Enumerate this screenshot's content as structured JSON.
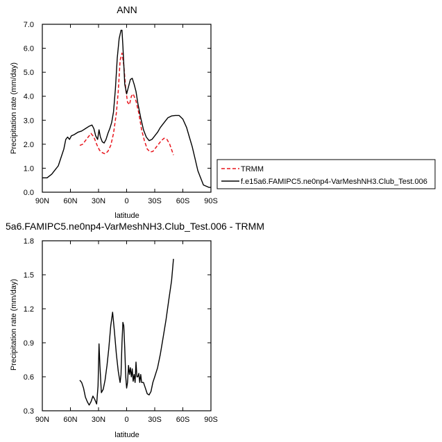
{
  "chart_data": [
    {
      "type": "line",
      "title": "ANN",
      "xlabel": "latitude",
      "ylabel": "Precipitation rate (mm/day)",
      "xlim": [
        90,
        -90
      ],
      "ylim": [
        0,
        7
      ],
      "x_ticks": [
        90,
        60,
        30,
        0,
        -30,
        -60,
        -90
      ],
      "x_tick_labels": [
        "90N",
        "60N",
        "30N",
        "0",
        "30S",
        "60S",
        "90S"
      ],
      "y_ticks": [
        0,
        1,
        2,
        3,
        4,
        5,
        6,
        7
      ],
      "y_tick_labels": [
        "0.0",
        "1.0",
        "2.0",
        "3.0",
        "4.0",
        "5.0",
        "6.0",
        "7.0"
      ],
      "legend": {
        "placement": "right, outside plot",
        "entries": [
          "TRMM",
          "f.e15a6.FAMIPC5.ne0np4-VarMeshNH3.Club_Test.006"
        ]
      },
      "series": [
        {
          "name": "TRMM",
          "style": "dashed",
          "color": "#e8141c",
          "x": [
            50,
            47,
            44,
            41,
            38,
            35,
            32,
            29,
            26,
            23,
            20,
            17,
            14,
            11,
            9,
            7,
            5,
            3,
            1,
            -1,
            -3,
            -5,
            -7,
            -10,
            -13,
            -16,
            -19,
            -22,
            -25,
            -28,
            -31,
            -34,
            -37,
            -40,
            -43,
            -46,
            -50
          ],
          "y": [
            1.95,
            2.0,
            2.15,
            2.3,
            2.45,
            2.3,
            2.0,
            1.75,
            1.65,
            1.6,
            1.7,
            1.95,
            2.45,
            3.3,
            4.2,
            5.5,
            5.8,
            5.3,
            4.3,
            3.75,
            3.65,
            4.0,
            4.1,
            3.8,
            3.3,
            2.6,
            2.15,
            1.8,
            1.68,
            1.7,
            1.85,
            2.0,
            2.15,
            2.25,
            2.2,
            2.0,
            1.55
          ]
        },
        {
          "name": "f.e15a6.FAMIPC5.ne0np4-VarMeshNH3.Club_Test.006",
          "style": "solid",
          "color": "#000000",
          "x": [
            90,
            85,
            80,
            76,
            73,
            70,
            67,
            65,
            63,
            61,
            59,
            56,
            52,
            48,
            44,
            40,
            37,
            35,
            33,
            31,
            29.5,
            28,
            26,
            24,
            22,
            20,
            18,
            16,
            14,
            12,
            10,
            8,
            6,
            5,
            4,
            2,
            0,
            -2,
            -4,
            -6,
            -8,
            -10,
            -12,
            -15,
            -18,
            -21,
            -24,
            -27,
            -30,
            -33,
            -36,
            -40,
            -44,
            -48,
            -52,
            -56,
            -60,
            -64,
            -67,
            -70,
            -73,
            -76,
            -79,
            -82,
            -85,
            -88,
            -90
          ],
          "y": [
            0.6,
            0.6,
            0.75,
            0.95,
            1.1,
            1.45,
            1.8,
            2.2,
            2.3,
            2.2,
            2.35,
            2.4,
            2.5,
            2.55,
            2.65,
            2.75,
            2.8,
            2.65,
            2.35,
            2.2,
            2.6,
            2.3,
            2.1,
            2.05,
            2.2,
            2.45,
            2.65,
            2.9,
            3.35,
            4.3,
            5.6,
            6.4,
            6.75,
            6.75,
            6.1,
            4.5,
            4.1,
            4.4,
            4.7,
            4.75,
            4.5,
            4.2,
            3.7,
            3.1,
            2.6,
            2.3,
            2.15,
            2.2,
            2.35,
            2.5,
            2.7,
            2.9,
            3.1,
            3.18,
            3.2,
            3.2,
            3.05,
            2.7,
            2.3,
            1.9,
            1.4,
            0.9,
            0.6,
            0.3,
            0.25,
            0.2,
            0.2
          ]
        }
      ]
    },
    {
      "type": "line",
      "title": "5a6.FAMIPC5.ne0np4-VarMeshNH3.Club_Test.006 - TRMM",
      "xlabel": "latitude",
      "ylabel": "Precipitation rate (mm/day)",
      "xlim": [
        90,
        -90
      ],
      "ylim": [
        0.3,
        1.8
      ],
      "x_ticks": [
        90,
        60,
        30,
        0,
        -30,
        -60,
        -90
      ],
      "x_tick_labels": [
        "90N",
        "60N",
        "30N",
        "0",
        "30S",
        "60S",
        "90S"
      ],
      "y_ticks": [
        0.3,
        0.6,
        0.9,
        1.2,
        1.5,
        1.8
      ],
      "y_tick_labels": [
        "0.3",
        "0.6",
        "0.9",
        "1.2",
        "1.5",
        "1.8"
      ],
      "series": [
        {
          "style": "solid",
          "color": "#000000",
          "x": [
            50,
            48,
            46,
            44,
            42,
            40,
            38,
            36,
            34,
            32,
            30.5,
            29.5,
            28.5,
            27,
            25,
            23,
            21,
            19,
            17,
            15,
            13,
            11,
            9,
            8,
            7,
            6,
            5,
            4,
            3,
            2,
            1,
            0,
            -1,
            -2,
            -3,
            -4,
            -5,
            -6,
            -7,
            -8,
            -9,
            -10,
            -11,
            -12,
            -13,
            -14,
            -15,
            -16,
            -18,
            -20,
            -22,
            -24,
            -26,
            -28,
            -30,
            -33,
            -36,
            -39,
            -42,
            -45,
            -48,
            -50
          ],
          "y": [
            0.57,
            0.55,
            0.5,
            0.42,
            0.38,
            0.35,
            0.38,
            0.43,
            0.4,
            0.36,
            0.52,
            0.89,
            0.7,
            0.46,
            0.49,
            0.57,
            0.7,
            0.85,
            1.05,
            1.17,
            1.0,
            0.8,
            0.65,
            0.6,
            0.55,
            0.62,
            0.9,
            1.08,
            1.05,
            0.85,
            0.6,
            0.5,
            0.55,
            0.7,
            0.62,
            0.68,
            0.6,
            0.67,
            0.56,
            0.62,
            0.55,
            0.73,
            0.6,
            0.6,
            0.63,
            0.55,
            0.62,
            0.55,
            0.55,
            0.5,
            0.45,
            0.44,
            0.47,
            0.55,
            0.6,
            0.68,
            0.8,
            0.95,
            1.1,
            1.28,
            1.45,
            1.64
          ]
        }
      ]
    }
  ]
}
